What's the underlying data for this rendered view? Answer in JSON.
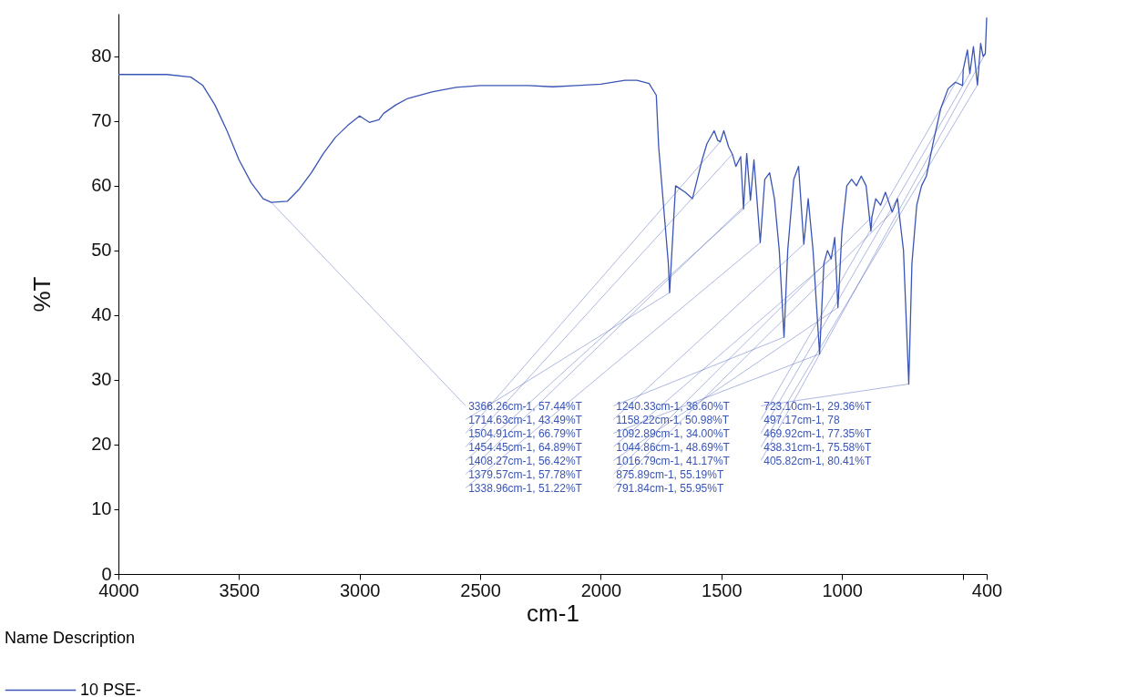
{
  "chart_data": {
    "type": "line",
    "xlabel": "cm-1",
    "ylabel": "%T",
    "legend_title": "Name Description",
    "legend": "bottom left",
    "grid": false,
    "marker": "none",
    "line_style": "solid",
    "xlim": [
      4000,
      400
    ],
    "xticks": [
      4000,
      3500,
      3000,
      2500,
      2000,
      1500,
      1000,
      {
        "value": 500,
        "label": null
      },
      400
    ],
    "ylim": [
      0,
      86.6
    ],
    "yticks": [
      0,
      10,
      20,
      30,
      40,
      50,
      60,
      70,
      80
    ],
    "series": [
      {
        "name": "10 PSE-",
        "color": "#3a55b4",
        "x": [
          4000,
          3800,
          3700,
          3650,
          3600,
          3550,
          3500,
          3450,
          3400,
          3366.26,
          3300,
          3250,
          3200,
          3150,
          3100,
          3050,
          3000,
          2960,
          2920,
          2900,
          2850,
          2800,
          2700,
          2600,
          2500,
          2400,
          2300,
          2200,
          2100,
          2000,
          1900,
          1850,
          1800,
          1770,
          1760,
          1740,
          1720,
          1714.63,
          1705,
          1690,
          1650,
          1620,
          1600,
          1580,
          1560,
          1530,
          1515,
          1504.91,
          1490,
          1470,
          1454.45,
          1440,
          1420,
          1408.27,
          1395,
          1379.57,
          1365,
          1338.96,
          1320,
          1300,
          1280,
          1260,
          1240.33,
          1225,
          1200,
          1180,
          1158.22,
          1140,
          1120,
          1092.89,
          1075,
          1060,
          1044.86,
          1030,
          1016.79,
          1000,
          980,
          960,
          940,
          920,
          900,
          880,
          875.89,
          860,
          840,
          820,
          791.84,
          770,
          745,
          723.1,
          710,
          690,
          670,
          650,
          620,
          590,
          560,
          530,
          500,
          497.17,
          480,
          469.92,
          455,
          438.31,
          425,
          415,
          405.82,
          400
        ],
        "values": [
          77.2,
          77.2,
          76.8,
          75.5,
          72.5,
          68.5,
          64,
          60.5,
          58,
          57.44,
          57.6,
          59.5,
          62,
          65,
          67.5,
          69.3,
          70.8,
          69.8,
          70.2,
          71.2,
          72.5,
          73.5,
          74.5,
          75.2,
          75.5,
          75.5,
          75.5,
          75.3,
          75.5,
          75.7,
          76.3,
          76.3,
          75.8,
          74,
          66,
          57,
          48,
          43.49,
          50,
          60,
          59,
          58,
          61,
          64,
          66.5,
          68.5,
          67,
          66.79,
          68.5,
          66,
          64.89,
          63,
          64.5,
          56.42,
          65,
          57.78,
          64,
          51.22,
          61,
          62,
          58,
          50,
          36.6,
          50,
          61,
          63,
          50.98,
          58,
          50,
          34,
          48,
          50,
          48.69,
          52,
          41.17,
          53,
          60,
          61,
          60,
          61.5,
          60,
          53,
          55.19,
          58,
          57,
          59,
          55.95,
          58,
          50,
          29.36,
          48,
          57,
          60,
          61.5,
          67,
          72,
          75,
          76,
          75.5,
          78,
          81,
          77.35,
          81.5,
          75.58,
          82,
          80,
          80.41,
          86
        ]
      }
    ],
    "annotations": [
      {
        "text": "3366.26cm-1, 57.44%T",
        "x": 3366.26,
        "y": 57.44
      },
      {
        "text": "1714.63cm-1, 43.49%T",
        "x": 1714.63,
        "y": 43.49
      },
      {
        "text": "1504.91cm-1, 66.79%T",
        "x": 1504.91,
        "y": 66.79
      },
      {
        "text": "1454.45cm-1, 64.89%T",
        "x": 1454.45,
        "y": 64.89
      },
      {
        "text": "1408.27cm-1, 56.42%T",
        "x": 1408.27,
        "y": 56.42
      },
      {
        "text": "1379.57cm-1, 57.78%T",
        "x": 1379.57,
        "y": 57.78
      },
      {
        "text": "1338.96cm-1, 51.22%T",
        "x": 1338.96,
        "y": 51.22
      },
      {
        "text": "1240.33cm-1, 36.60%T",
        "x": 1240.33,
        "y": 36.6
      },
      {
        "text": "1158.22cm-1, 50.98%T",
        "x": 1158.22,
        "y": 50.98
      },
      {
        "text": "1092.89cm-1, 34.00%T",
        "x": 1092.89,
        "y": 34
      },
      {
        "text": "1044.86cm-1, 48.69%T",
        "x": 1044.86,
        "y": 48.69
      },
      {
        "text": "1016.79cm-1, 41.17%T",
        "x": 1016.79,
        "y": 41.17
      },
      {
        "text": "875.89cm-1, 55.19%T",
        "x": 875.89,
        "y": 55.19
      },
      {
        "text": "791.84cm-1, 55.95%T",
        "x": 791.84,
        "y": 55.95
      },
      {
        "text": "723.10cm-1, 29.36%T",
        "x": 723.1,
        "y": 29.36
      },
      {
        "text": "497.17cm-1, 78",
        "x": 497.17,
        "y": 78
      },
      {
        "text": "469.92cm-1, 77.35%T",
        "x": 469.92,
        "y": 77.35
      },
      {
        "text": "438.31cm-1, 75.58%T",
        "x": 438.31,
        "y": 75.58
      },
      {
        "text": "405.82cm-1, 80.41%T",
        "x": 405.82,
        "y": 80.41
      }
    ]
  }
}
